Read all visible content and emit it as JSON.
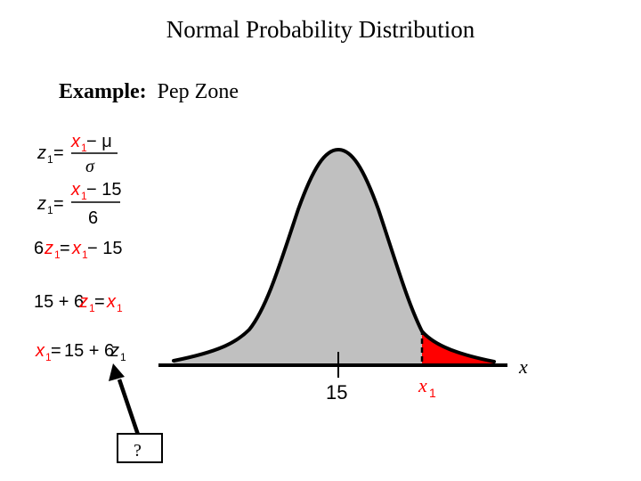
{
  "title": "Normal Probability Distribution",
  "example": {
    "label": "Example:",
    "text": "Pep Zone"
  },
  "equations": {
    "eq1": {
      "lhs": "z",
      "lhs_sub": "1",
      "eq": "=",
      "num_x": "x",
      "num_sub": "1",
      "num_rest": " − μ",
      "den": "σ"
    },
    "eq2": {
      "lhs": "z",
      "lhs_sub": "1",
      "eq": "=",
      "num_x": "x",
      "num_sub": "1",
      "num_rest": " − 15",
      "den": "6"
    },
    "eq3": {
      "pre": "6",
      "z": "z",
      "z_sub": "1",
      "eq": "=",
      "x": "x",
      "x_sub": "1",
      "post": " − 15"
    },
    "eq4": {
      "pre": "15 + 6",
      "z": "z",
      "z_sub": "1",
      "eq": "=",
      "x": "x",
      "x_sub": "1"
    },
    "eq5": {
      "x": "x",
      "x_sub": "1",
      "eq": "=",
      "mid": "15 + 6",
      "z": "z",
      "z_sub": "1"
    }
  },
  "curve": {
    "mean": 15,
    "mean_label": "15",
    "x1_label": "x",
    "x1_sub": "1",
    "axis_label": "x"
  },
  "callout": {
    "text": "?"
  },
  "colors": {
    "highlight": "#ff0000",
    "curve_fill": "#c0c0c0",
    "shaded_tail": "#ff0000",
    "ink": "#000000"
  }
}
